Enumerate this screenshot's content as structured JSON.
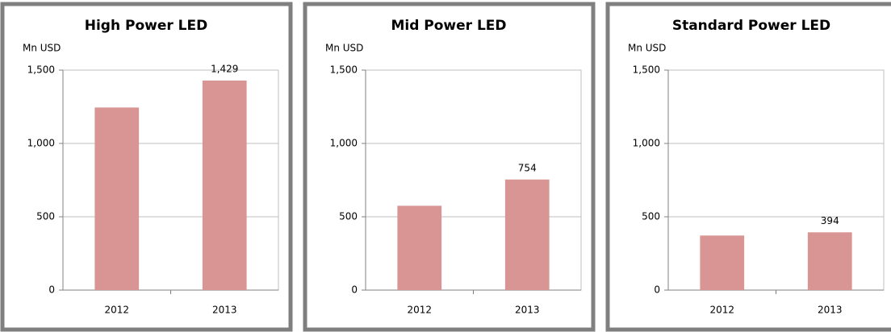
{
  "chart_data": [
    {
      "type": "bar",
      "title": "High Power LED",
      "y_label": "Mn USD",
      "categories": [
        "2012",
        "2013"
      ],
      "values": [
        1245,
        1429
      ],
      "value_labels": [
        null,
        "1,429"
      ],
      "color": "#d99594",
      "ylim": [
        0,
        1500
      ],
      "yticks": [
        0,
        500,
        {
          "value": 1000,
          "label": "1,000"
        },
        {
          "value": 1500,
          "label": "1,500"
        }
      ],
      "grid": true
    },
    {
      "type": "bar",
      "title": "Mid Power LED",
      "y_label": "Mn USD",
      "categories": [
        "2012",
        "2013"
      ],
      "values": [
        575,
        754
      ],
      "value_labels": [
        null,
        "754"
      ],
      "color": "#d99594",
      "ylim": [
        0,
        1500
      ],
      "yticks": [
        0,
        500,
        {
          "value": 1000,
          "label": "1,000"
        },
        {
          "value": 1500,
          "label": "1,500"
        }
      ],
      "grid": true
    },
    {
      "type": "bar",
      "title": "Standard Power LED",
      "y_label": "Mn USD",
      "categories": [
        "2012",
        "2013"
      ],
      "values": [
        372,
        394
      ],
      "value_labels": [
        null,
        "394"
      ],
      "color": "#d99594",
      "ylim": [
        0,
        1500
      ],
      "yticks": [
        0,
        500,
        {
          "value": 1000,
          "label": "1,000"
        },
        {
          "value": 1500,
          "label": "1,500"
        }
      ],
      "grid": true
    }
  ]
}
